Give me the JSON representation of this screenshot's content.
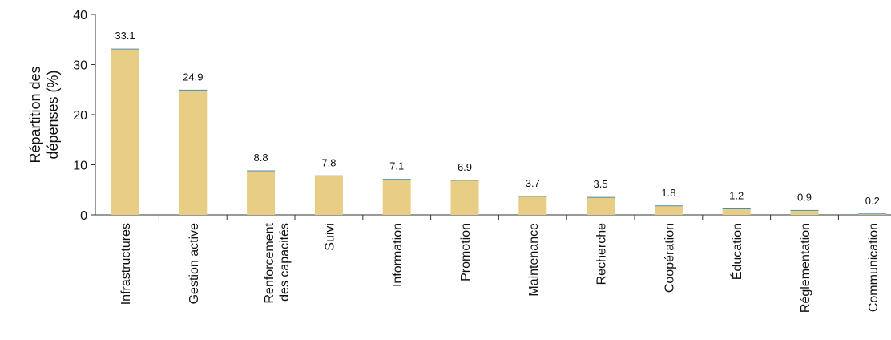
{
  "chart_data": {
    "type": "bar",
    "title": "",
    "xlabel": "",
    "ylabel_lines": [
      "Répartition des",
      "dépenses (%)"
    ],
    "ylim": [
      0,
      40
    ],
    "yticks": [
      "0",
      "10",
      "20",
      "30",
      "40"
    ],
    "categories": [
      [
        "Infrastructures"
      ],
      [
        "Gestion active"
      ],
      [
        "Renforcement",
        "des capacités"
      ],
      [
        "Suivi"
      ],
      [
        "Information"
      ],
      [
        "Promotion"
      ],
      [
        "Maintenance"
      ],
      [
        "Recherche"
      ],
      [
        "Coopération"
      ],
      [
        "Éducation"
      ],
      [
        "Réglementation"
      ],
      [
        "Communication"
      ]
    ],
    "values": [
      33.1,
      24.9,
      8.8,
      7.8,
      7.1,
      6.9,
      3.7,
      3.5,
      1.8,
      1.2,
      0.9,
      0.2
    ],
    "value_labels": [
      "33.1",
      "24.9",
      "8.8",
      "7.8",
      "7.1",
      "6.9",
      "3.7",
      "3.5",
      "1.8",
      "1.2",
      "0.9",
      "0.2"
    ],
    "bar_color": "#e8cd85",
    "bar_edge_color": "#4a8fb8",
    "grid": false
  }
}
